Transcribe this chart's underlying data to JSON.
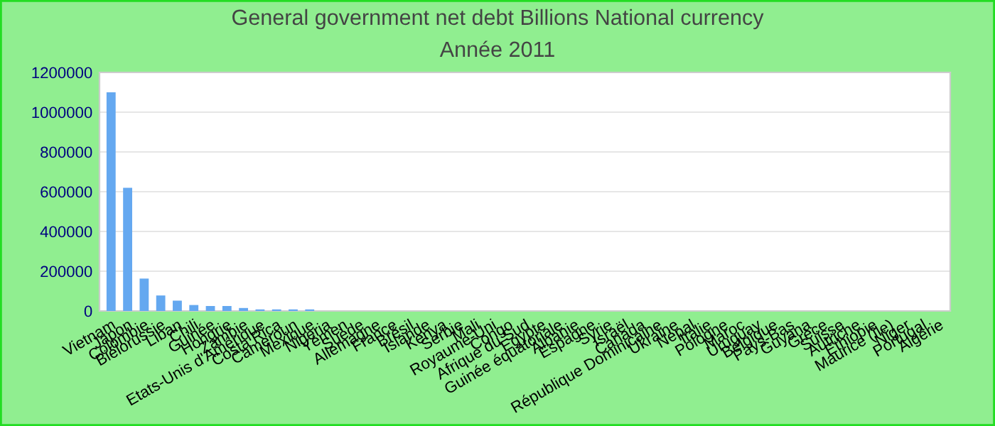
{
  "chart_data": {
    "type": "bar",
    "title": "General government net debt Billions National currency",
    "subtitle": "Année 2011",
    "categories": [
      "Vietnam",
      "Japon",
      "Colombie",
      "Biélorussie",
      "Liban",
      "Chili",
      "Guinée",
      "Hongrie",
      "Zambie",
      "Etats-Unis d'Amérique",
      "Costa Rica",
      "Cameroun",
      "Mexique",
      "Nigeria",
      "Yémen",
      "Suède",
      "Allemagne",
      "France",
      "Brésil",
      "Islande",
      "Kenya",
      "Serbie",
      "Mali",
      "Royaume-Uni",
      "Congo",
      "Afrique du Sud",
      "Egypte",
      "Guinée équatoriale",
      "Albanie",
      "Espagne",
      "Syrie",
      "Israël",
      "Canada",
      "République Dominicaine",
      "Ukraine",
      "Népal",
      "Italie",
      "Pologne",
      "Maroc",
      "Uruguay",
      "Belgique",
      "Pays-Bas",
      "Guyana",
      "Grèce",
      "Suisse",
      "Autriche",
      "Ethiopie",
      "Maurice (île)",
      "Niger",
      "Portugal",
      "Algérie"
    ],
    "values": [
      1100000,
      620000,
      163000,
      78000,
      52000,
      30000,
      25000,
      25000,
      15000,
      8000,
      8000,
      8000,
      8000,
      0,
      0,
      0,
      0,
      0,
      0,
      0,
      0,
      0,
      0,
      0,
      0,
      0,
      0,
      0,
      0,
      0,
      0,
      0,
      0,
      0,
      0,
      0,
      0,
      0,
      0,
      0,
      0,
      0,
      0,
      0,
      0,
      0,
      0,
      0,
      0,
      0,
      0
    ],
    "color": "#64a8f0",
    "ylim": [
      0,
      1200000
    ],
    "yticks": [
      0,
      200000,
      400000,
      600000,
      800000,
      1000000,
      1200000
    ],
    "grid": "y"
  }
}
